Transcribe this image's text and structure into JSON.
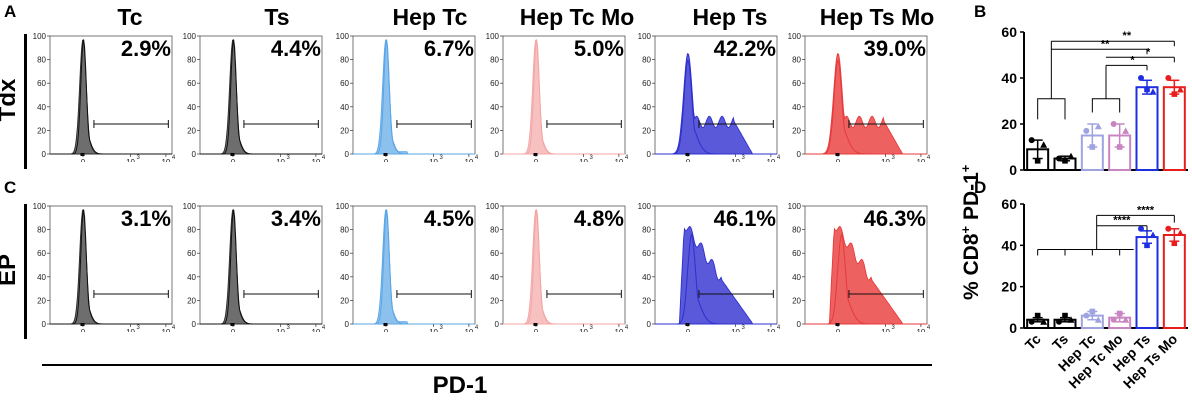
{
  "panels": {
    "A": "A",
    "B": "B",
    "C": "C",
    "D": "D"
  },
  "columns": [
    "Tc",
    "Ts",
    "Hep Tc",
    "Hep Tc Mo",
    "Hep Ts",
    "Hep Ts Mo"
  ],
  "rows": [
    "Tdx",
    "EP"
  ],
  "histogram_axis": {
    "y_ticks": [
      "0",
      "20",
      "40",
      "60",
      "80",
      "100"
    ],
    "x_ticks": [
      "0",
      "10",
      "10"
    ],
    "x_exps": [
      "3",
      "4"
    ]
  },
  "x_axis_label": "PD-1",
  "y_axis_title": "% CD8",
  "y_axis_sup": "+",
  "y_axis_suffix": " PD-1",
  "y_axis_sup2": "+",
  "colors": {
    "Tc": "#2b2b2b",
    "Ts": "#2b2b2b",
    "Hep Tc": "#5aa6e6",
    "Hep Tc Mo": "#f4a6a6",
    "Hep Ts": "#2f2fcf",
    "Hep Ts Mo": "#e83a3a",
    "bar_Tc": "#000000",
    "bar_Ts": "#000000",
    "bar_Hep Tc": "#9fa3e0",
    "bar_Hep Tc Mo": "#c985c1",
    "bar_Hep Ts": "#1f2fe0",
    "bar_Hep Ts Mo": "#e81e1e"
  },
  "chart_data": [
    {
      "type": "histogram",
      "row": "Tdx",
      "percentages": [
        "2.9%",
        "4.4%",
        "6.7%",
        "5.0%",
        "42.2%",
        "39.0%"
      ]
    },
    {
      "type": "histogram",
      "row": "EP",
      "percentages": [
        "3.1%",
        "3.4%",
        "4.5%",
        "4.8%",
        "46.1%",
        "46.3%"
      ]
    },
    {
      "type": "bar",
      "panel": "B",
      "categories": [
        "Tc",
        "Ts",
        "Hep Tc",
        "Hep Tc Mo",
        "Hep Ts",
        "Hep Ts Mo"
      ],
      "values": [
        9,
        5,
        15,
        15,
        36,
        36
      ],
      "errors": [
        4,
        1,
        5,
        5,
        3,
        3
      ],
      "points": [
        [
          13,
          4,
          11
        ],
        [
          5,
          4,
          6
        ],
        [
          17,
          10,
          19
        ],
        [
          20,
          10,
          17
        ],
        [
          40,
          35,
          34
        ],
        [
          40,
          33,
          35
        ]
      ],
      "ylim": [
        0,
        60
      ],
      "yticks": [
        0,
        20,
        40,
        60
      ],
      "significance": [
        "**",
        "**",
        "*",
        "*"
      ]
    },
    {
      "type": "bar",
      "panel": "D",
      "categories": [
        "Tc",
        "Ts",
        "Hep Tc",
        "Hep Tc Mo",
        "Hep Ts",
        "Hep Ts Mo"
      ],
      "values": [
        4,
        4,
        6,
        5,
        44,
        45
      ],
      "errors": [
        1,
        1,
        2,
        2,
        3,
        3
      ],
      "points": [
        [
          3,
          6,
          3
        ],
        [
          3,
          6,
          4
        ],
        [
          6,
          8,
          4
        ],
        [
          4,
          7,
          4
        ],
        [
          48,
          40,
          45
        ],
        [
          48,
          41,
          46
        ]
      ],
      "ylim": [
        0,
        60
      ],
      "yticks": [
        0,
        20,
        40,
        60
      ],
      "significance": [
        "****",
        "****"
      ]
    }
  ],
  "bar_x_labels": [
    "Tc",
    "Ts",
    "Hep Tc",
    "Hep Tc Mo",
    "Hep Ts",
    "Hep Ts Mo"
  ]
}
